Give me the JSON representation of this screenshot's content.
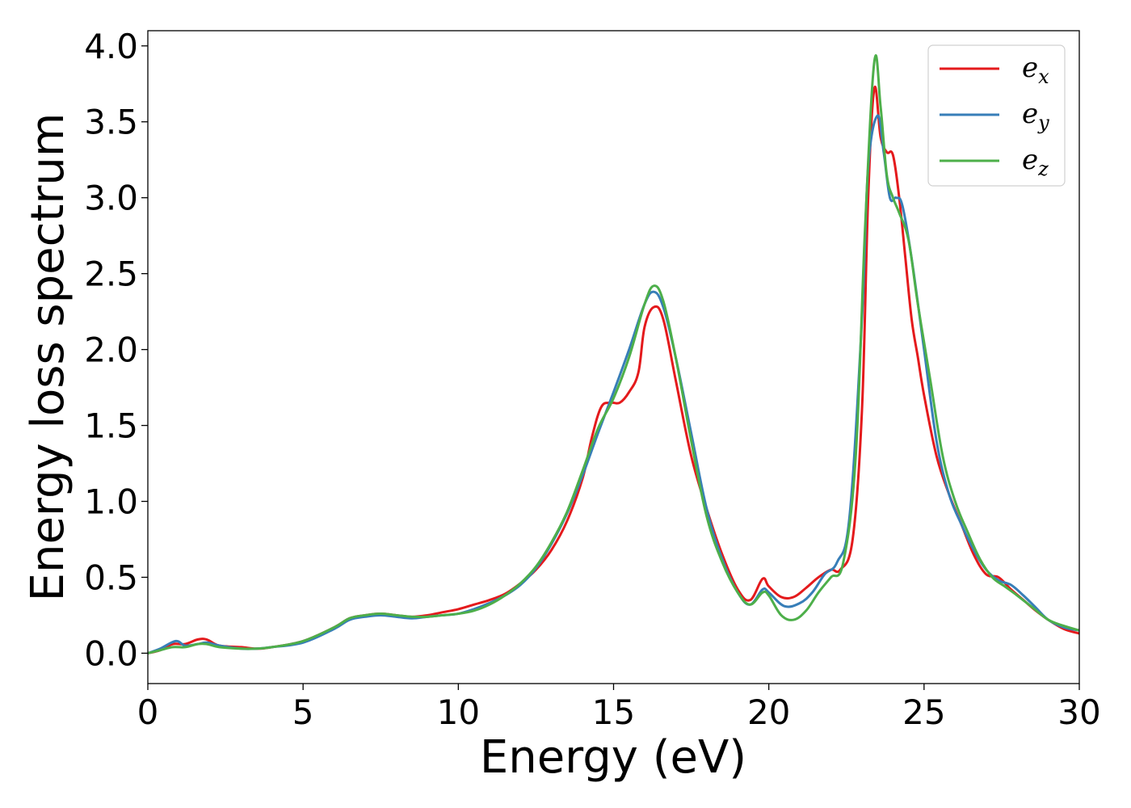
{
  "chart_data": {
    "type": "line",
    "title": "",
    "xlabel": "Energy (eV)",
    "ylabel": "Energy loss spectrum",
    "xlim": [
      0,
      30
    ],
    "ylim": [
      -0.2,
      4.1
    ],
    "xticks": [
      0,
      5,
      10,
      15,
      20,
      25,
      30
    ],
    "yticks": [
      0.0,
      0.5,
      1.0,
      1.5,
      2.0,
      2.5,
      3.0,
      3.5,
      4.0
    ],
    "xtick_labels": [
      "0",
      "5",
      "10",
      "15",
      "20",
      "25",
      "30"
    ],
    "ytick_labels": [
      "0.0",
      "0.5",
      "1.0",
      "1.5",
      "2.0",
      "2.5",
      "3.0",
      "3.5",
      "4.0"
    ],
    "grid": false,
    "legend_position": "top-right",
    "series": [
      {
        "name": "e_x",
        "legend_base": "e",
        "legend_sub": "x",
        "color": "#e41a1c",
        "x": [
          0,
          0.4,
          0.8,
          1.2,
          1.6,
          1.9,
          2.3,
          3.0,
          3.5,
          4.0,
          5.0,
          6.0,
          6.5,
          7.0,
          7.5,
          8.0,
          8.5,
          9.0,
          9.5,
          10.0,
          10.5,
          11.0,
          11.5,
          12.0,
          12.5,
          13.0,
          13.5,
          14.0,
          14.3,
          14.6,
          14.9,
          15.2,
          15.5,
          15.8,
          16.0,
          16.3,
          16.6,
          17.0,
          17.5,
          18.0,
          18.5,
          19.0,
          19.4,
          19.8,
          20.0,
          20.4,
          20.8,
          21.2,
          21.6,
          22.0,
          22.3,
          22.7,
          23.0,
          23.2,
          23.4,
          23.6,
          23.8,
          24.0,
          24.2,
          24.4,
          24.6,
          24.8,
          25.0,
          25.4,
          25.8,
          26.2,
          26.6,
          27.0,
          27.4,
          27.8,
          28.2,
          28.6,
          29.0,
          29.5,
          30.0
        ],
        "values": [
          0.0,
          0.02,
          0.06,
          0.06,
          0.09,
          0.09,
          0.05,
          0.04,
          0.03,
          0.04,
          0.08,
          0.17,
          0.23,
          0.25,
          0.26,
          0.25,
          0.24,
          0.25,
          0.27,
          0.29,
          0.32,
          0.35,
          0.39,
          0.46,
          0.55,
          0.68,
          0.87,
          1.15,
          1.42,
          1.62,
          1.65,
          1.65,
          1.72,
          1.85,
          2.15,
          2.28,
          2.2,
          1.8,
          1.3,
          0.95,
          0.65,
          0.42,
          0.35,
          0.49,
          0.44,
          0.37,
          0.37,
          0.43,
          0.5,
          0.55,
          0.55,
          0.75,
          1.6,
          3.0,
          3.72,
          3.4,
          3.3,
          3.28,
          3.0,
          2.6,
          2.2,
          1.95,
          1.7,
          1.3,
          1.05,
          0.85,
          0.65,
          0.52,
          0.5,
          0.42,
          0.35,
          0.28,
          0.22,
          0.16,
          0.13
        ]
      },
      {
        "name": "e_y",
        "legend_base": "e",
        "legend_sub": "y",
        "color": "#377eb8",
        "x": [
          0,
          0.4,
          0.9,
          1.2,
          1.6,
          1.9,
          2.3,
          3.0,
          3.5,
          4.0,
          5.0,
          6.0,
          6.5,
          7.0,
          7.5,
          8.0,
          8.5,
          9.0,
          9.5,
          10.0,
          10.5,
          11.0,
          11.5,
          12.0,
          12.5,
          13.0,
          13.5,
          14.0,
          14.5,
          15.0,
          15.5,
          16.0,
          16.3,
          16.6,
          17.0,
          17.5,
          18.0,
          18.5,
          19.0,
          19.4,
          19.8,
          20.0,
          20.5,
          21.0,
          21.4,
          21.8,
          22.2,
          22.6,
          23.0,
          23.2,
          23.5,
          23.7,
          23.9,
          24.1,
          24.3,
          24.6,
          25.0,
          25.4,
          25.8,
          26.2,
          26.6,
          27.0,
          27.4,
          27.8,
          28.2,
          28.6,
          29.0,
          29.5,
          30.0
        ],
        "values": [
          0.0,
          0.03,
          0.08,
          0.05,
          0.06,
          0.07,
          0.05,
          0.03,
          0.03,
          0.04,
          0.07,
          0.16,
          0.22,
          0.24,
          0.25,
          0.24,
          0.23,
          0.24,
          0.25,
          0.26,
          0.29,
          0.33,
          0.38,
          0.45,
          0.56,
          0.72,
          0.92,
          1.17,
          1.45,
          1.72,
          2.0,
          2.3,
          2.38,
          2.28,
          1.95,
          1.45,
          0.95,
          0.62,
          0.4,
          0.32,
          0.42,
          0.4,
          0.31,
          0.33,
          0.4,
          0.52,
          0.6,
          0.9,
          2.2,
          3.2,
          3.54,
          3.3,
          3.0,
          3.0,
          2.95,
          2.6,
          2.0,
          1.4,
          1.05,
          0.85,
          0.68,
          0.55,
          0.48,
          0.45,
          0.38,
          0.3,
          0.22,
          0.17,
          0.15
        ]
      },
      {
        "name": "e_z",
        "legend_base": "e",
        "legend_sub": "z",
        "color": "#4daf4a",
        "x": [
          0,
          0.4,
          0.8,
          1.2,
          1.6,
          1.9,
          2.3,
          3.0,
          3.5,
          4.0,
          5.0,
          6.0,
          6.5,
          7.0,
          7.5,
          8.0,
          8.5,
          9.0,
          9.5,
          10.0,
          10.5,
          11.0,
          11.5,
          12.0,
          12.5,
          13.0,
          13.5,
          14.0,
          14.5,
          15.0,
          15.5,
          16.0,
          16.3,
          16.6,
          17.0,
          17.5,
          18.0,
          18.5,
          19.0,
          19.4,
          19.8,
          20.0,
          20.4,
          20.8,
          21.2,
          21.6,
          22.0,
          22.4,
          22.8,
          23.1,
          23.4,
          23.6,
          23.8,
          24.0,
          24.2,
          24.5,
          24.8,
          25.2,
          25.6,
          26.0,
          26.4,
          26.8,
          27.2,
          27.6,
          28.0,
          28.5,
          29.0,
          29.5,
          30.0
        ],
        "values": [
          0.0,
          0.02,
          0.04,
          0.04,
          0.06,
          0.06,
          0.04,
          0.03,
          0.03,
          0.04,
          0.08,
          0.17,
          0.23,
          0.25,
          0.26,
          0.25,
          0.24,
          0.24,
          0.25,
          0.26,
          0.28,
          0.32,
          0.38,
          0.46,
          0.57,
          0.73,
          0.93,
          1.2,
          1.48,
          1.68,
          1.95,
          2.3,
          2.42,
          2.32,
          1.95,
          1.4,
          0.9,
          0.6,
          0.4,
          0.32,
          0.4,
          0.38,
          0.25,
          0.22,
          0.28,
          0.4,
          0.5,
          0.6,
          1.3,
          2.8,
          3.9,
          3.6,
          3.15,
          3.0,
          2.9,
          2.72,
          2.3,
          1.8,
          1.3,
          1.0,
          0.8,
          0.62,
          0.5,
          0.44,
          0.38,
          0.3,
          0.22,
          0.18,
          0.15
        ]
      }
    ]
  }
}
